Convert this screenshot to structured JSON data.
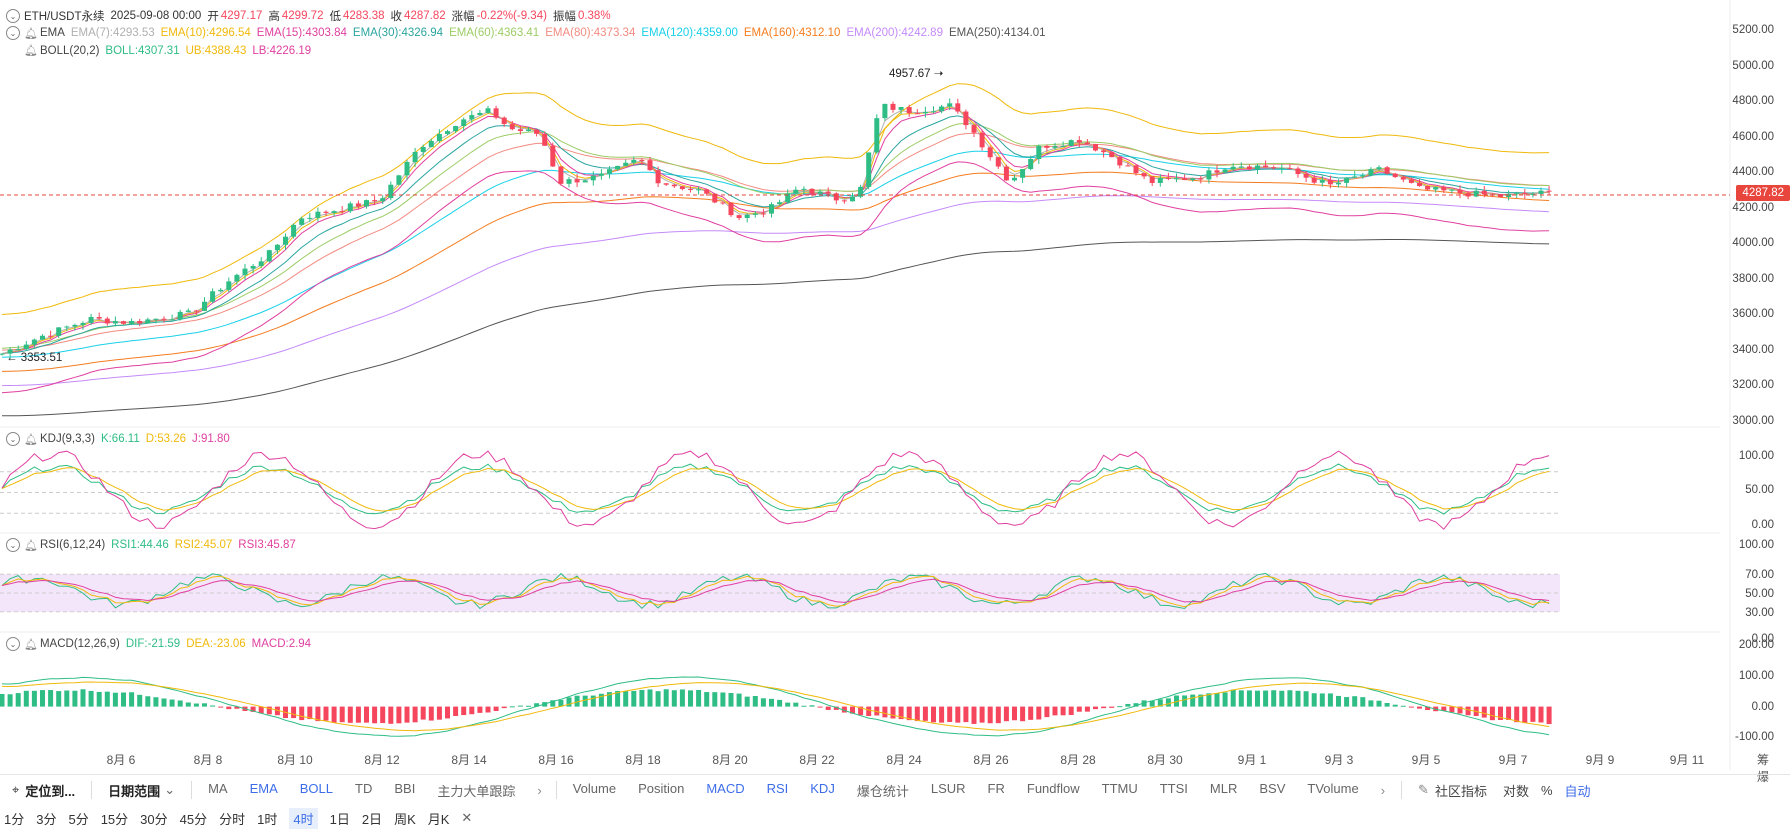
{
  "header": {
    "symbol": "ETH/USDT永续",
    "date": "2025-09-08 00:00",
    "open_label": "开",
    "open": "4297.17",
    "high_label": "高",
    "high": "4299.72",
    "low_label": "低",
    "low": "4283.38",
    "close_label": "收",
    "close": "4287.82",
    "change_label": "涨幅",
    "change": "-0.22%(-9.34)",
    "amp_label": "振幅",
    "amp": "0.38%"
  },
  "ema": {
    "name": "EMA",
    "items": [
      {
        "label": "EMA(7):4293.53",
        "color": "#b0b0b0"
      },
      {
        "label": "EMA(10):4296.54",
        "color": "#f0b90b"
      },
      {
        "label": "EMA(15):4303.84",
        "color": "#e040a0"
      },
      {
        "label": "EMA(30):4326.94",
        "color": "#2aa5a0"
      },
      {
        "label": "EMA(60):4363.41",
        "color": "#9ccc65"
      },
      {
        "label": "EMA(80):4373.34",
        "color": "#f28b82"
      },
      {
        "label": "EMA(120):4359.00",
        "color": "#18d0e8"
      },
      {
        "label": "EMA(160):4312.10",
        "color": "#f57c1f"
      },
      {
        "label": "EMA(200):4242.89",
        "color": "#c58af9"
      },
      {
        "label": "EMA(250):4134.01",
        "color": "#555555"
      }
    ]
  },
  "boll": {
    "name": "BOLL(20,2)",
    "boll": "BOLL:4307.31",
    "ub": "UB:4388.43",
    "lb": "LB:4226.19"
  },
  "kdj": {
    "name": "KDJ(9,3,3)",
    "k": "K:66.11",
    "d": "D:53.26",
    "j": "J:91.80"
  },
  "rsi": {
    "name": "RSI(6,12,24)",
    "r1": "RSI1:44.46",
    "r2": "RSI2:45.07",
    "r3": "RSI3:45.87"
  },
  "macd": {
    "name": "MACD(12,26,9)",
    "dif": "DIF:-21.59",
    "dea": "DEA:-23.06",
    "macd": "MACD:2.94"
  },
  "price_axis": [
    "5200.00",
    "5000.00",
    "4800.00",
    "4600.00",
    "4400.00",
    "4200.00",
    "4000.00",
    "3800.00",
    "3600.00",
    "3400.00",
    "3200.00",
    "3000.00"
  ],
  "kdj_axis": [
    "100.00",
    "50.00",
    "0.00"
  ],
  "rsi_axis": [
    "100.00",
    "70.00",
    "50.00",
    "30.00",
    "0.00"
  ],
  "macd_axis": [
    "200.00",
    "100.00",
    "0.00",
    "-100.00"
  ],
  "current_price": "4287.82",
  "annotations": {
    "high": "4957.67",
    "low": "3353.51"
  },
  "x_axis": [
    {
      "label": "8月 6",
      "x": 0.0
    },
    {
      "label": "8月 8",
      "x": 0.0
    },
    {
      "label": "8月 10",
      "x": 0.0
    },
    {
      "label": "8月 12",
      "x": 0.0
    },
    {
      "label": "8月 14",
      "x": 0.0
    },
    {
      "label": "8月 16",
      "x": 0.0
    },
    {
      "label": "8月 18",
      "x": 0.0
    },
    {
      "label": "8月 20",
      "x": 0.0
    },
    {
      "label": "8月 22",
      "x": 0.0
    },
    {
      "label": "8月 24",
      "x": 0.0
    },
    {
      "label": "8月 26",
      "x": 0.0
    },
    {
      "label": "8月 28",
      "x": 0.0
    },
    {
      "label": "8月 30",
      "x": 0.0
    },
    {
      "label": "9月 1",
      "x": 0.0
    },
    {
      "label": "9月 3",
      "x": 0.0
    },
    {
      "label": "9月 5",
      "x": 0.0
    },
    {
      "label": "9月 7",
      "x": 0.0
    },
    {
      "label": "9月 9",
      "x": 0.0
    },
    {
      "label": "9月 11",
      "x": 0.0
    }
  ],
  "x_axis_tail": "筹 爆",
  "toolbar": {
    "locate": "定位到...",
    "date_range": "日期范围",
    "main_indicators": [
      "MA",
      "EMA",
      "BOLL",
      "TD",
      "BBI",
      "主力大单跟踪"
    ],
    "sub_indicators": [
      "Volume",
      "Position",
      "MACD",
      "RSI",
      "KDJ",
      "爆仓统计",
      "LSUR",
      "FR",
      "Fundflow",
      "TTMU",
      "TTSI",
      "MLR",
      "BSV",
      "TVolume"
    ],
    "community": "社区指标",
    "right": [
      "对数",
      "%",
      "自动"
    ]
  },
  "timeframes": [
    "1分",
    "3分",
    "5分",
    "15分",
    "30分",
    "45分",
    "分时",
    "1时",
    "4时",
    "1日",
    "2日",
    "周K",
    "月K"
  ],
  "active_timeframe": "4时",
  "colors": {
    "up": "#2ebd85",
    "down": "#f6465d",
    "accent": "#3d6ee8",
    "price_line": "#e8453c"
  }
}
